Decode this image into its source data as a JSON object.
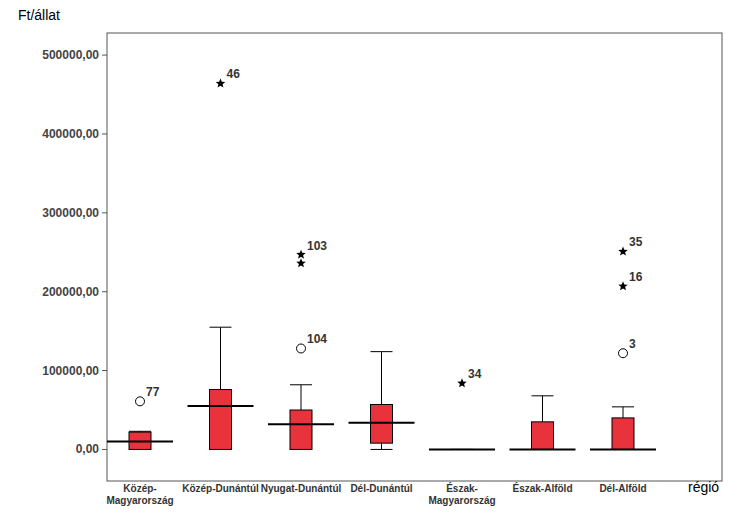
{
  "chart_data": {
    "type": "box",
    "y_label": "Ft/állat",
    "x_label": "régió",
    "color": "#e8323c",
    "categories": [
      "Közép-Magyarország",
      "Közép-Dunántúl",
      "Nyugat-Dunántúl",
      "Dél-Dunántúl",
      "Észak-Magyarország",
      "Észak-Alföld",
      "Dél-Alföld"
    ],
    "boxes": [
      {
        "min": 0,
        "q1": 0,
        "median": 10000,
        "q3": 22000,
        "max": 23000,
        "outliers": [
          {
            "value": 61000,
            "label": "77",
            "marker": "circle"
          }
        ]
      },
      {
        "min": 0,
        "q1": 0,
        "median": 55000,
        "q3": 76000,
        "max": 155000,
        "outliers": [
          {
            "value": 464000,
            "label": "46",
            "marker": "star"
          }
        ]
      },
      {
        "min": 0,
        "q1": 0,
        "median": 32000,
        "q3": 50000,
        "max": 82000,
        "outliers": [
          {
            "value": 247000,
            "label": "103",
            "marker": "star"
          },
          {
            "value": 236000,
            "marker": "star"
          },
          {
            "value": 128000,
            "label": "104",
            "marker": "circle"
          }
        ]
      },
      {
        "min": 0,
        "q1": 8000,
        "median": 34000,
        "q3": 57000,
        "max": 124000,
        "outliers": []
      },
      {
        "min": 0,
        "q1": 0,
        "median": 0,
        "q3": 0,
        "max": 0,
        "outliers": [
          {
            "value": 84000,
            "label": "34",
            "marker": "star"
          }
        ]
      },
      {
        "min": 0,
        "q1": 0,
        "median": 0,
        "q3": 35000,
        "max": 68000,
        "outliers": []
      },
      {
        "min": 0,
        "q1": 0,
        "median": 0,
        "q3": 40000,
        "max": 54000,
        "outliers": [
          {
            "value": 251000,
            "label": "35",
            "marker": "star"
          },
          {
            "value": 207000,
            "label": "16",
            "marker": "star"
          },
          {
            "value": 122000,
            "label": "3",
            "marker": "circle"
          }
        ]
      }
    ],
    "ylim": [
      -40000,
      528000
    ],
    "yticks": [
      {
        "value": 0,
        "label": "0,00"
      },
      {
        "value": 100000,
        "label": "100000,00"
      },
      {
        "value": 200000,
        "label": "200000,00"
      },
      {
        "value": 300000,
        "label": "300000,00"
      },
      {
        "value": 400000,
        "label": "400000,00"
      },
      {
        "value": 500000,
        "label": "500000,00"
      }
    ]
  }
}
